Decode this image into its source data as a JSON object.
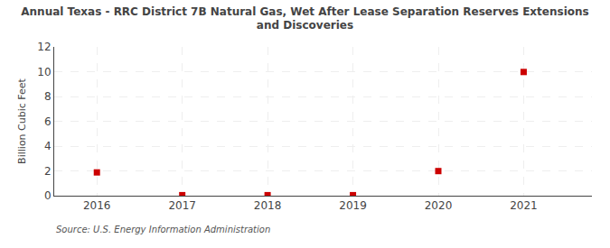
{
  "chart_data": {
    "type": "scatter",
    "title": "Annual Texas - RRC District 7B Natural Gas, Wet After Lease Separation Reserves Extensions\nand Discoveries",
    "ylabel": "Billion Cubic Feet",
    "annotations": [
      "Source: U.S. Energy Information Administration"
    ],
    "x": [
      2016,
      2017,
      2018,
      2019,
      2020,
      2021
    ],
    "values": [
      1.878,
      0.043,
      0.043,
      0.043,
      1.985,
      9.977
    ],
    "xlim": [
      2015.5,
      2021.8
    ],
    "xticks": [
      2016,
      2017,
      2018,
      2019,
      2020,
      2021
    ],
    "ylim": [
      0,
      12
    ],
    "yticks": [
      0,
      2,
      4,
      6,
      8,
      10,
      12
    ],
    "color": "#CC0000",
    "marker": "square",
    "grid": true
  }
}
